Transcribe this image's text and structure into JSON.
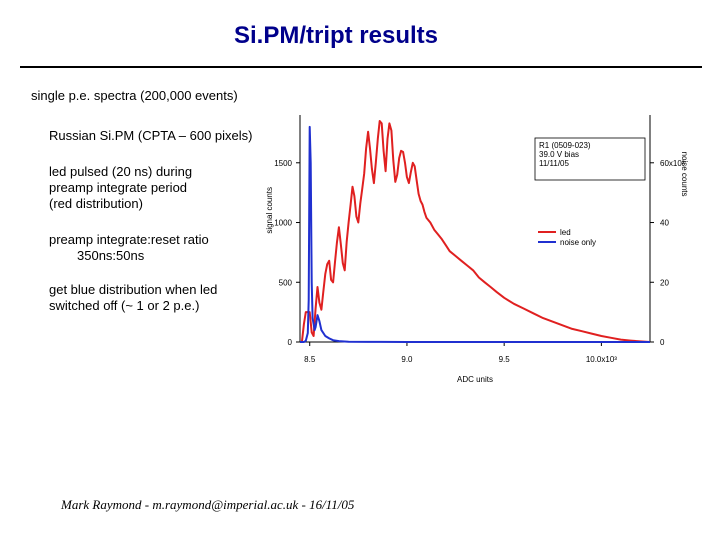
{
  "title": "Si.PM/tript results",
  "bullets": {
    "spectra": "single p.e. spectra (200,000 events)",
    "device": "Russian Si.PM (CPTA – 600 pixels)",
    "led_pulsed": [
      "led pulsed (20 ns) during",
      "preamp integrate period",
      "(red distribution)"
    ],
    "preamp_ratio": [
      "preamp integrate:reset ratio",
      "350ns:50ns"
    ],
    "blue_dist": [
      "get blue distribution when led",
      "switched off (~ 1 or 2 p.e.)"
    ]
  },
  "footer": "Mark Raymond - m.raymond@imperial.ac.uk - 16/11/05",
  "chart_data": {
    "type": "line",
    "xlabel": "ADC units",
    "ylabel": "signal counts",
    "y2label": "noise counts",
    "xlim": [
      8.45,
      10.25
    ],
    "ylim": [
      0,
      1900
    ],
    "y2lim": [
      0,
      76
    ],
    "x_ticks": [
      "8.5",
      "9.0",
      "9.5",
      "10.0x10³"
    ],
    "x_tick_values": [
      8.5,
      9.0,
      9.5,
      10.0
    ],
    "y_ticks": [
      "0",
      "500",
      "1000",
      "1500"
    ],
    "y_tick_values": [
      0,
      500,
      1000,
      1500
    ],
    "y2_ticks": [
      "0",
      "20",
      "40",
      "60x10³"
    ],
    "y2_tick_values": [
      0,
      20,
      40,
      60
    ],
    "annotation": [
      "R1 (0509-023)",
      "39.0 V bias",
      "11/11/05"
    ],
    "colors": {
      "led": "#e02020",
      "noise": "#2030d0"
    },
    "series": [
      {
        "name": "led",
        "axis": "left",
        "color": "#e02020",
        "x": [
          8.46,
          8.47,
          8.48,
          8.5,
          8.51,
          8.52,
          8.53,
          8.54,
          8.55,
          8.56,
          8.57,
          8.58,
          8.59,
          8.6,
          8.61,
          8.62,
          8.63,
          8.64,
          8.65,
          8.66,
          8.67,
          8.68,
          8.69,
          8.7,
          8.71,
          8.72,
          8.73,
          8.74,
          8.75,
          8.76,
          8.77,
          8.78,
          8.79,
          8.8,
          8.81,
          8.82,
          8.83,
          8.84,
          8.85,
          8.86,
          8.87,
          8.88,
          8.89,
          8.9,
          8.91,
          8.92,
          8.93,
          8.94,
          8.95,
          8.96,
          8.97,
          8.98,
          8.99,
          9.0,
          9.01,
          9.02,
          9.03,
          9.04,
          9.05,
          9.06,
          9.07,
          9.08,
          9.09,
          9.1,
          9.12,
          9.14,
          9.16,
          9.18,
          9.2,
          9.22,
          9.25,
          9.28,
          9.31,
          9.34,
          9.37,
          9.4,
          9.43,
          9.46,
          9.5,
          9.55,
          9.6,
          9.65,
          9.7,
          9.75,
          9.8,
          9.85,
          9.9,
          9.95,
          10.0,
          10.05,
          10.1,
          10.15,
          10.2,
          10.25
        ],
        "y": [
          0,
          150,
          250,
          250,
          80,
          50,
          280,
          460,
          330,
          270,
          420,
          570,
          650,
          680,
          520,
          500,
          670,
          830,
          960,
          820,
          660,
          600,
          840,
          1000,
          1150,
          1300,
          1220,
          1050,
          1000,
          1160,
          1280,
          1410,
          1620,
          1760,
          1620,
          1450,
          1330,
          1500,
          1700,
          1850,
          1830,
          1600,
          1430,
          1700,
          1830,
          1770,
          1520,
          1340,
          1400,
          1540,
          1600,
          1590,
          1500,
          1380,
          1330,
          1420,
          1500,
          1470,
          1350,
          1240,
          1180,
          1150,
          1090,
          1040,
          1000,
          940,
          900,
          860,
          810,
          760,
          720,
          680,
          640,
          600,
          540,
          500,
          460,
          420,
          370,
          320,
          280,
          240,
          200,
          170,
          140,
          110,
          90,
          70,
          50,
          35,
          20,
          12,
          5,
          0
        ]
      },
      {
        "name": "noise only",
        "axis": "right",
        "color": "#2030d0",
        "x": [
          8.45,
          8.47,
          8.48,
          8.49,
          8.495,
          8.5,
          8.505,
          8.51,
          8.515,
          8.52,
          8.525,
          8.53,
          8.54,
          8.55,
          8.56,
          8.58,
          8.6,
          8.62,
          8.65,
          8.7,
          8.8,
          9.0,
          9.5,
          10.0,
          10.25
        ],
        "y": [
          0,
          0,
          0.4,
          3,
          14,
          72,
          60,
          20,
          8,
          6,
          4,
          5,
          9,
          7,
          4,
          2,
          1.2,
          0.6,
          0.3,
          0.1,
          0.05,
          0,
          0,
          0,
          0
        ]
      }
    ]
  }
}
